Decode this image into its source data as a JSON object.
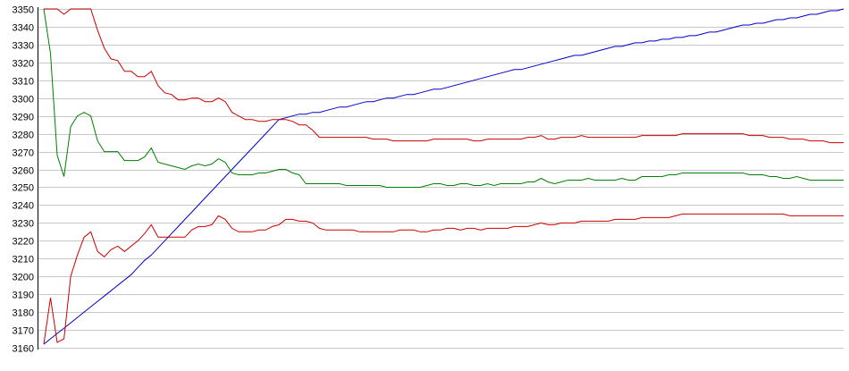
{
  "chart_data": {
    "type": "line",
    "title": "",
    "xlabel": "",
    "ylabel": "",
    "ylim": [
      3160,
      3350
    ],
    "yticks": [
      3160,
      3170,
      3180,
      3190,
      3200,
      3210,
      3220,
      3230,
      3240,
      3250,
      3260,
      3270,
      3280,
      3290,
      3300,
      3310,
      3320,
      3330,
      3340,
      3350
    ],
    "x_count": 120,
    "grid": true,
    "series": [
      {
        "color": "#0000cc",
        "values": [
          3162,
          3165,
          3168,
          3171,
          3174,
          3177,
          3180,
          3183,
          3186,
          3189,
          3192,
          3195,
          3198,
          3201,
          3205,
          3209,
          3212,
          3216,
          3220,
          3224,
          3228,
          3232,
          3236,
          3240,
          3244,
          3248,
          3252,
          3256,
          3260,
          3264,
          3268,
          3272,
          3276,
          3280,
          3284,
          3288,
          3289,
          3290,
          3291,
          3291,
          3292,
          3292,
          3293,
          3294,
          3295,
          3295,
          3296,
          3297,
          3298,
          3298,
          3299,
          3300,
          3300,
          3301,
          3302,
          3302,
          3303,
          3304,
          3305,
          3305,
          3306,
          3307,
          3308,
          3309,
          3310,
          3311,
          3312,
          3313,
          3314,
          3315,
          3316,
          3316,
          3317,
          3318,
          3319,
          3320,
          3321,
          3322,
          3323,
          3324,
          3324,
          3325,
          3326,
          3327,
          3328,
          3329,
          3329,
          3330,
          3331,
          3331,
          3332,
          3332,
          3333,
          3333,
          3334,
          3334,
          3335,
          3335,
          3336,
          3337,
          3337,
          3338,
          3339,
          3340,
          3341,
          3341,
          3342,
          3342,
          3343,
          3344,
          3344,
          3345,
          3345,
          3346,
          3347,
          3347,
          3348,
          3349,
          3349,
          3350
        ]
      },
      {
        "color": "#008000",
        "values": [
          3350,
          3325,
          3268,
          3256,
          3284,
          3290,
          3292,
          3290,
          3276,
          3270,
          3270,
          3270,
          3265,
          3265,
          3265,
          3267,
          3272,
          3264,
          3263,
          3262,
          3261,
          3260,
          3262,
          3263,
          3262,
          3263,
          3266,
          3264,
          3258,
          3257,
          3257,
          3257,
          3258,
          3258,
          3259,
          3260,
          3260,
          3258,
          3257,
          3252,
          3252,
          3252,
          3252,
          3252,
          3252,
          3251,
          3251,
          3251,
          3251,
          3251,
          3251,
          3250,
          3250,
          3250,
          3250,
          3250,
          3250,
          3251,
          3252,
          3252,
          3251,
          3251,
          3252,
          3252,
          3251,
          3251,
          3252,
          3251,
          3252,
          3252,
          3252,
          3252,
          3253,
          3253,
          3255,
          3253,
          3252,
          3253,
          3254,
          3254,
          3254,
          3255,
          3254,
          3254,
          3254,
          3254,
          3255,
          3254,
          3254,
          3256,
          3256,
          3256,
          3256,
          3257,
          3257,
          3258,
          3258,
          3258,
          3258,
          3258,
          3258,
          3258,
          3258,
          3258,
          3258,
          3257,
          3257,
          3257,
          3256,
          3256,
          3255,
          3255,
          3256,
          3255,
          3254,
          3254,
          3254,
          3254,
          3254,
          3254
        ]
      },
      {
        "color": "#cc0000",
        "values": [
          3350,
          3350,
          3350,
          3347,
          3350,
          3350,
          3350,
          3350,
          3338,
          3328,
          3322,
          3321,
          3315,
          3315,
          3312,
          3312,
          3315,
          3307,
          3303,
          3302,
          3299,
          3299,
          3300,
          3300,
          3298,
          3298,
          3300,
          3298,
          3292,
          3290,
          3288,
          3288,
          3287,
          3287,
          3288,
          3288,
          3288,
          3287,
          3285,
          3285,
          3282,
          3278,
          3278,
          3278,
          3278,
          3278,
          3278,
          3278,
          3278,
          3277,
          3277,
          3277,
          3276,
          3276,
          3276,
          3276,
          3276,
          3276,
          3277,
          3277,
          3277,
          3277,
          3277,
          3277,
          3276,
          3276,
          3277,
          3277,
          3277,
          3277,
          3277,
          3277,
          3278,
          3278,
          3279,
          3277,
          3277,
          3278,
          3278,
          3278,
          3279,
          3278,
          3278,
          3278,
          3278,
          3278,
          3278,
          3278,
          3278,
          3279,
          3279,
          3279,
          3279,
          3279,
          3279,
          3280,
          3280,
          3280,
          3280,
          3280,
          3280,
          3280,
          3280,
          3280,
          3280,
          3279,
          3279,
          3279,
          3278,
          3278,
          3278,
          3277,
          3277,
          3277,
          3276,
          3276,
          3276,
          3275,
          3275,
          3275
        ]
      },
      {
        "color": "#cc0000",
        "values": [
          3162,
          3188,
          3163,
          3165,
          3200,
          3212,
          3222,
          3225,
          3214,
          3211,
          3215,
          3217,
          3214,
          3217,
          3220,
          3224,
          3229,
          3222,
          3222,
          3222,
          3222,
          3222,
          3226,
          3228,
          3228,
          3229,
          3234,
          3232,
          3227,
          3225,
          3225,
          3225,
          3226,
          3226,
          3228,
          3229,
          3232,
          3232,
          3231,
          3231,
          3230,
          3227,
          3226,
          3226,
          3226,
          3226,
          3226,
          3225,
          3225,
          3225,
          3225,
          3225,
          3225,
          3226,
          3226,
          3226,
          3225,
          3225,
          3226,
          3226,
          3227,
          3227,
          3226,
          3227,
          3227,
          3226,
          3227,
          3227,
          3227,
          3227,
          3228,
          3228,
          3228,
          3229,
          3230,
          3229,
          3229,
          3230,
          3230,
          3230,
          3231,
          3231,
          3231,
          3231,
          3231,
          3232,
          3232,
          3232,
          3232,
          3233,
          3233,
          3233,
          3233,
          3233,
          3234,
          3235,
          3235,
          3235,
          3235,
          3235,
          3235,
          3235,
          3235,
          3235,
          3235,
          3235,
          3235,
          3235,
          3235,
          3235,
          3235,
          3234,
          3234,
          3234,
          3234,
          3234,
          3234,
          3234,
          3234,
          3234
        ]
      }
    ]
  }
}
